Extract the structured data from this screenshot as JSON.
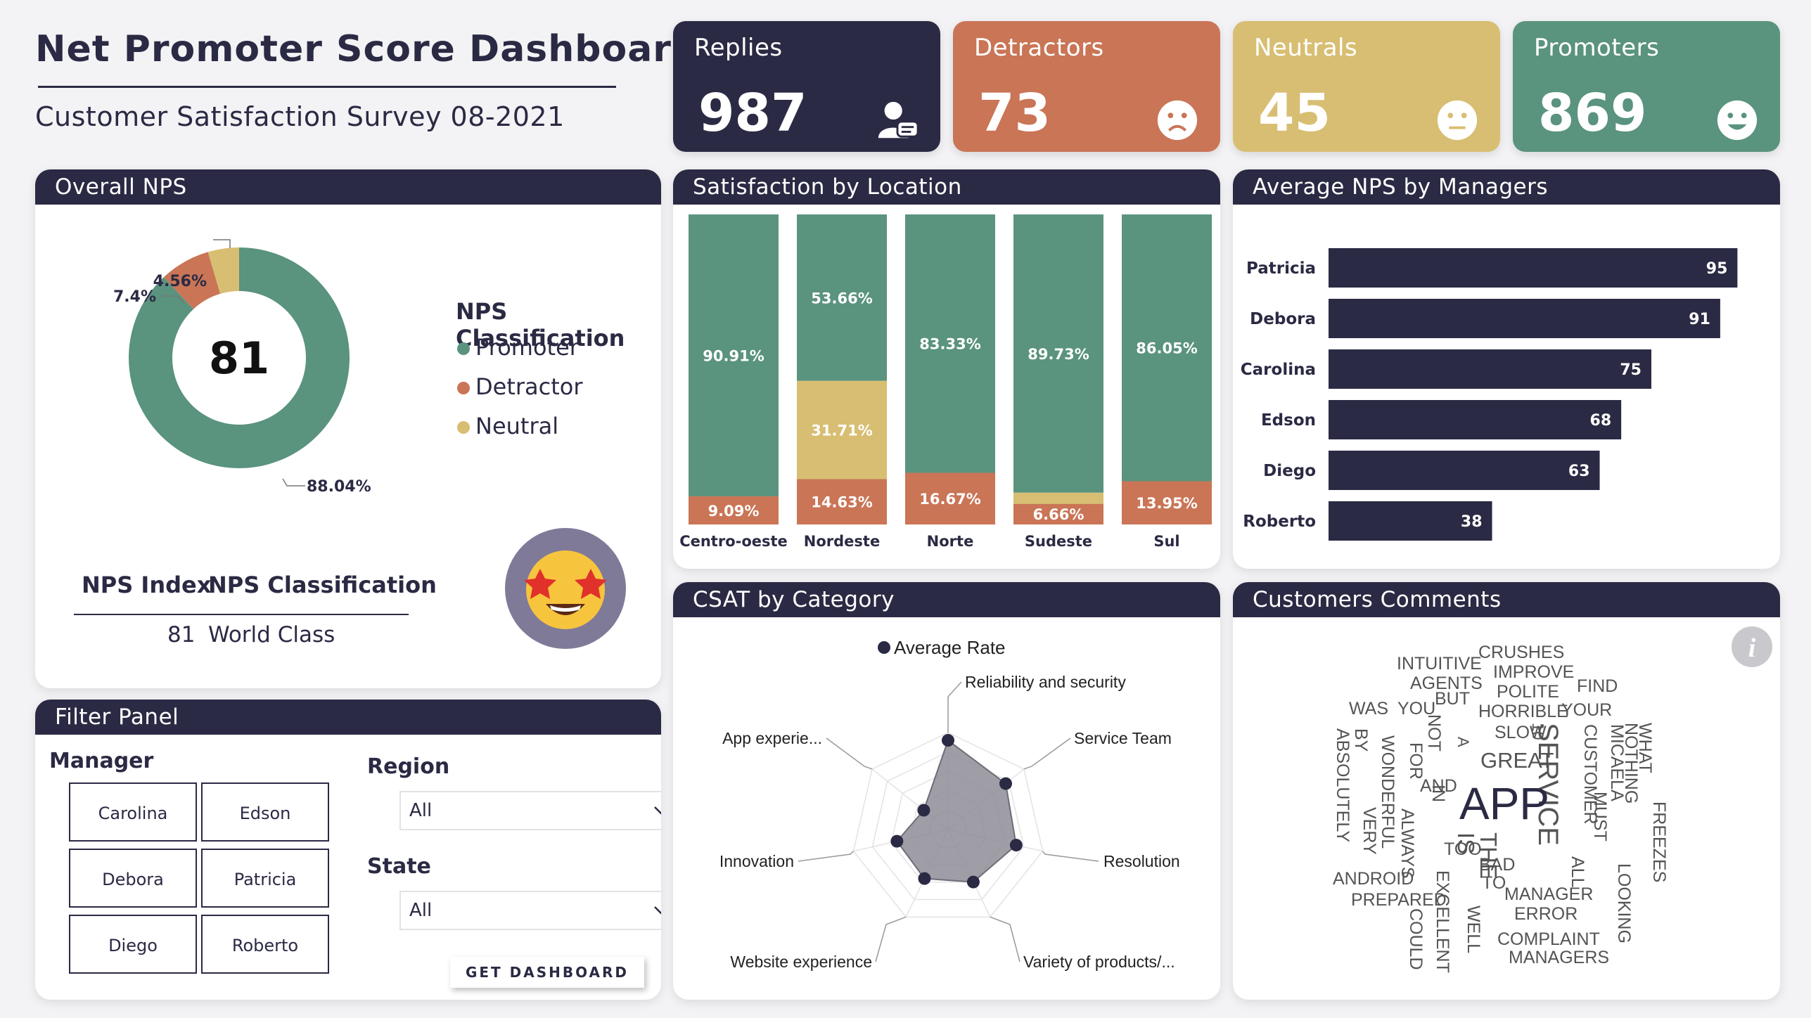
{
  "header": {
    "title": "Net Promoter Score Dashboard",
    "subtitle": "Customer Satisfaction Survey 08-2021"
  },
  "kpis": {
    "replies": {
      "label": "Replies",
      "value": "987",
      "color": "#2b2a44",
      "icon": "user-comment-icon"
    },
    "detractors": {
      "label": "Detractors",
      "value": "73",
      "color": "#c97556",
      "icon": "sad-face-icon"
    },
    "neutrals": {
      "label": "Neutrals",
      "value": "45",
      "color": "#d8be72",
      "icon": "neutral-face-icon"
    },
    "promoters": {
      "label": "Promoters",
      "value": "869",
      "color": "#5a937e",
      "icon": "happy-face-icon"
    }
  },
  "overall_nps": {
    "title": "Overall NPS",
    "score": "81",
    "legend_title": "NPS Classification",
    "index_header": "NPS Index",
    "classification_header": "NPS Classification",
    "index_value": "81",
    "classification_value": "World Class",
    "emoji_icon": "star-struck-emoji-icon"
  },
  "location": {
    "title": "Satisfaction by Location"
  },
  "managers": {
    "title": "Average NPS by Managers"
  },
  "csat": {
    "title": "CSAT by Category",
    "legend": "Average Rate"
  },
  "comments": {
    "title": "Customers Comments",
    "info_icon": "info-icon",
    "words": [
      "CRUSHES",
      "INTUITIVE",
      "IMPROVE",
      "AGENTS",
      "FIND",
      "POLITE",
      "BUT",
      "WAS",
      "YOU",
      "HORRIBLE",
      "YOUR",
      "NOT",
      "SLOW",
      "10",
      "A",
      "WHAT",
      "FOR",
      "GREAT",
      "SERVICE",
      "CUSTOMER",
      "MICAELA",
      "NOTHING",
      "BY",
      "ABSOLUTELY",
      "WONDERFUL",
      "AND",
      "APP",
      "IN",
      "IS",
      "THE",
      "MUST",
      "FREEZES",
      "ALWAYS",
      "TOO",
      "BAD",
      "LOOKING",
      "ANDROID",
      "TO",
      "MANAGER",
      "ALL",
      "PREPARED",
      "EXCELLENT",
      "ERROR",
      "WELL",
      "COMPLAINT",
      "COULD",
      "MANAGERS",
      "VERY"
    ]
  },
  "filters": {
    "title": "Filter Panel",
    "manager_label": "Manager",
    "managers": [
      "Carolina",
      "Edson",
      "Debora",
      "Patricia",
      "Diego",
      "Roberto"
    ],
    "region_label": "Region",
    "region_value": "All",
    "state_label": "State",
    "state_value": "All",
    "button_label": "GET DASHBOARD"
  },
  "chart_data": [
    {
      "type": "pie",
      "title": "Overall NPS",
      "categories": [
        "Promoter",
        "Detractor",
        "Neutral"
      ],
      "values": [
        88.04,
        7.4,
        4.56
      ],
      "labels": [
        "88.04%",
        "7.4%",
        "4.56%"
      ],
      "colors": [
        "#5a937e",
        "#c97556",
        "#d8be72"
      ],
      "center_label": "81",
      "legend_title": "NPS Classification"
    },
    {
      "type": "bar",
      "stacked": true,
      "title": "Satisfaction by Location",
      "categories": [
        "Centro-oeste",
        "Nordeste",
        "Norte",
        "Sudeste",
        "Sul"
      ],
      "series": [
        {
          "name": "Detractor",
          "color": "#c97556",
          "values": [
            9.09,
            14.63,
            16.67,
            6.66,
            13.95
          ],
          "labels": [
            "9.09%",
            "14.63%",
            "16.67%",
            "6.66%",
            "13.95%"
          ]
        },
        {
          "name": "Neutral",
          "color": "#d8be72",
          "values": [
            0,
            31.71,
            0,
            3.61,
            0
          ],
          "labels": [
            "",
            "31.71%",
            "",
            "",
            ""
          ]
        },
        {
          "name": "Promoter",
          "color": "#5a937e",
          "values": [
            90.91,
            53.66,
            83.33,
            89.73,
            86.05
          ],
          "labels": [
            "90.91%",
            "53.66%",
            "83.33%",
            "89.73%",
            "86.05%"
          ]
        }
      ],
      "ylim": [
        0,
        100
      ]
    },
    {
      "type": "bar",
      "orientation": "horizontal",
      "title": "Average NPS by Managers",
      "categories": [
        "Patricia",
        "Debora",
        "Carolina",
        "Edson",
        "Diego",
        "Roberto"
      ],
      "values": [
        95,
        91,
        75,
        68,
        63,
        38
      ],
      "color": "#2b2a44",
      "xlim": [
        0,
        100
      ]
    },
    {
      "type": "radar",
      "title": "CSAT by Category",
      "categories": [
        "Reliability and security",
        "Service Team",
        "Resolution",
        "Variety of products/...",
        "Website experience",
        "Innovation",
        "App experie..."
      ],
      "series": [
        {
          "name": "Average Rate",
          "values": [
            4.6,
            3.8,
            3.6,
            3.0,
            2.8,
            2.7,
            1.6
          ]
        }
      ],
      "range": [
        0,
        5
      ],
      "fill": "#8e8d96",
      "point_color": "#2b2a44"
    }
  ]
}
